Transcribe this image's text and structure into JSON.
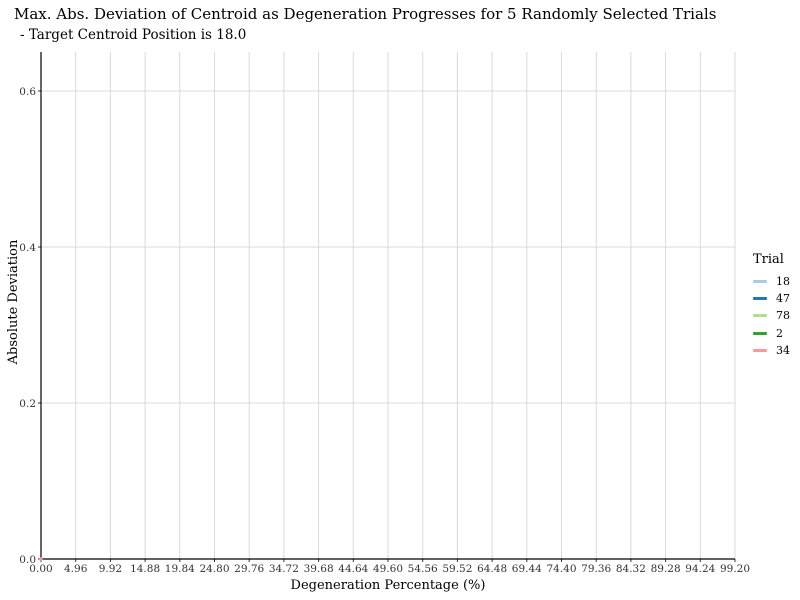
{
  "chart_data": {
    "type": "line",
    "title": "Max. Abs. Deviation of Centroid as Degeneration Progresses for 5 Randomly Selected Trials",
    "subtitle": " - Target Centroid Position is 18.0",
    "xlabel": "Degeneration Percentage (%)",
    "ylabel": "Absolute Deviation",
    "xticks": [
      "0.00",
      "4.96",
      "9.92",
      "14.88",
      "19.84",
      "24.80",
      "29.76",
      "34.72",
      "39.68",
      "44.64",
      "49.60",
      "54.56",
      "59.52",
      "64.48",
      "69.44",
      "74.40",
      "79.36",
      "84.32",
      "89.28",
      "94.24",
      "99.20"
    ],
    "yticks": [
      "0.0",
      "0.2",
      "0.4",
      "0.6"
    ],
    "xlim": [
      0,
      99.2
    ],
    "ylim": [
      0,
      0.65
    ],
    "grid": true,
    "legend": {
      "title": "Trial",
      "position": "right"
    },
    "series": [
      {
        "name": "18",
        "color": "#a6cee3",
        "x": [
          0.0
        ],
        "y": [
          0.0
        ]
      },
      {
        "name": "47",
        "color": "#1f78b4",
        "x": [
          0.0
        ],
        "y": [
          0.0
        ]
      },
      {
        "name": "78",
        "color": "#b2df8a",
        "x": [
          0.0
        ],
        "y": [
          0.0
        ]
      },
      {
        "name": "2",
        "color": "#33a02c",
        "x": [
          0.0
        ],
        "y": [
          0.0
        ]
      },
      {
        "name": "34",
        "color": "#fb9a99",
        "x": [
          0.0
        ],
        "y": [
          0.0
        ]
      }
    ]
  }
}
